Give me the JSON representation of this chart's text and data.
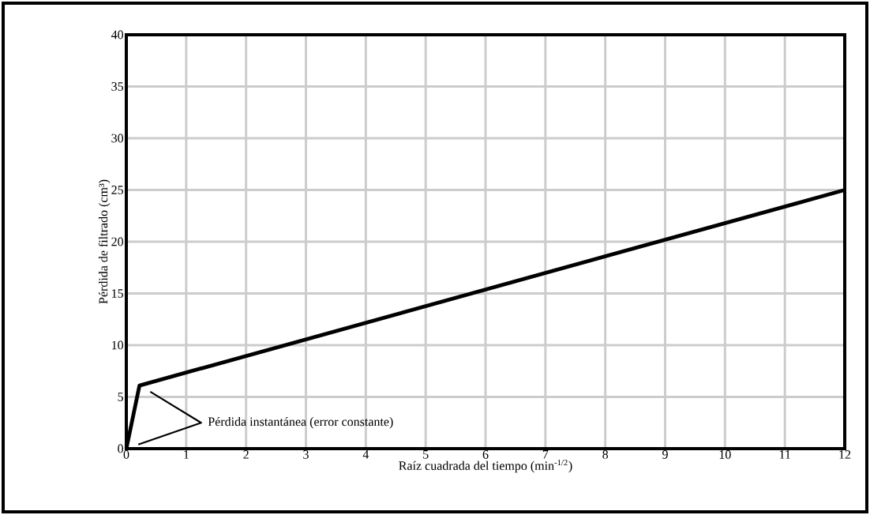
{
  "chart_data": {
    "type": "line",
    "xlabel": "Raíz cuadrada del tiempo (min$^{-1/2}$)",
    "ylabel": "Pérdida de filtrado (cm³)",
    "annotations": [
      "Pérdida instantánea (error constante)"
    ],
    "series": [
      {
        "x": [
          0,
          0.22,
          12
        ],
        "values": [
          0,
          6.1,
          25
        ],
        "color": "#000000"
      }
    ],
    "xlim": [
      0,
      12
    ],
    "ylim": [
      0,
      40
    ],
    "xticks": [
      0,
      1,
      2,
      3,
      4,
      5,
      6,
      7,
      8,
      9,
      10,
      11,
      12
    ],
    "yticks": [
      0,
      5,
      10,
      15,
      20,
      25,
      30,
      35,
      40
    ],
    "grid": true
  }
}
